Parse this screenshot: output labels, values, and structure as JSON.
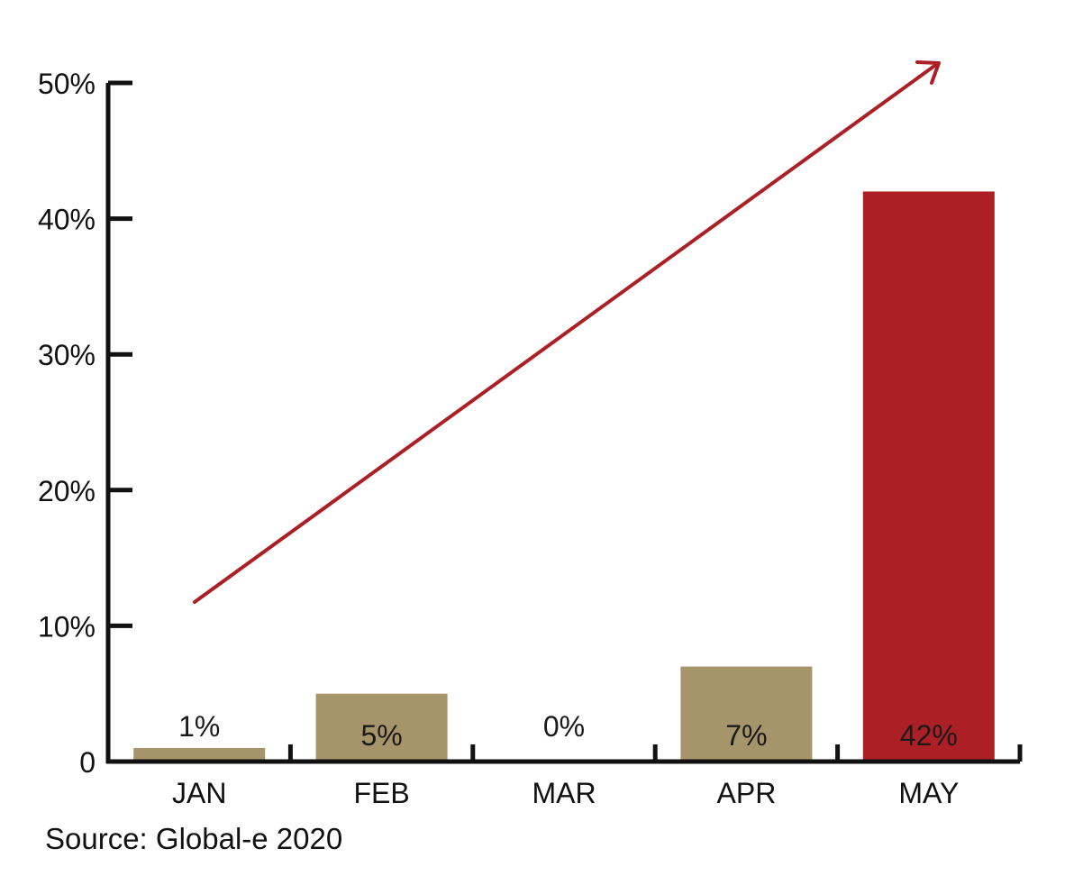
{
  "chart_data": {
    "type": "bar",
    "categories": [
      "JAN",
      "FEB",
      "MAR",
      "APR",
      "MAY"
    ],
    "values": [
      1,
      5,
      0,
      7,
      42
    ],
    "data_labels": [
      "1%",
      "5%",
      "0%",
      "7%",
      "42%"
    ],
    "ylim": [
      0,
      50
    ],
    "y_ticks": [
      0,
      10,
      20,
      30,
      40,
      50
    ],
    "y_tick_labels": [
      "0",
      "10%",
      "20%",
      "30%",
      "40%",
      "50%"
    ],
    "grid": false,
    "annotations": [
      "upward trend arrow"
    ],
    "colors": {
      "default_bar": "#a6946a",
      "highlight_bar": "#ab1f25",
      "arrow": "#ab1f25",
      "axis": "#111111"
    },
    "highlight_index": 4
  },
  "source_text": "Source: Global-e 2020"
}
